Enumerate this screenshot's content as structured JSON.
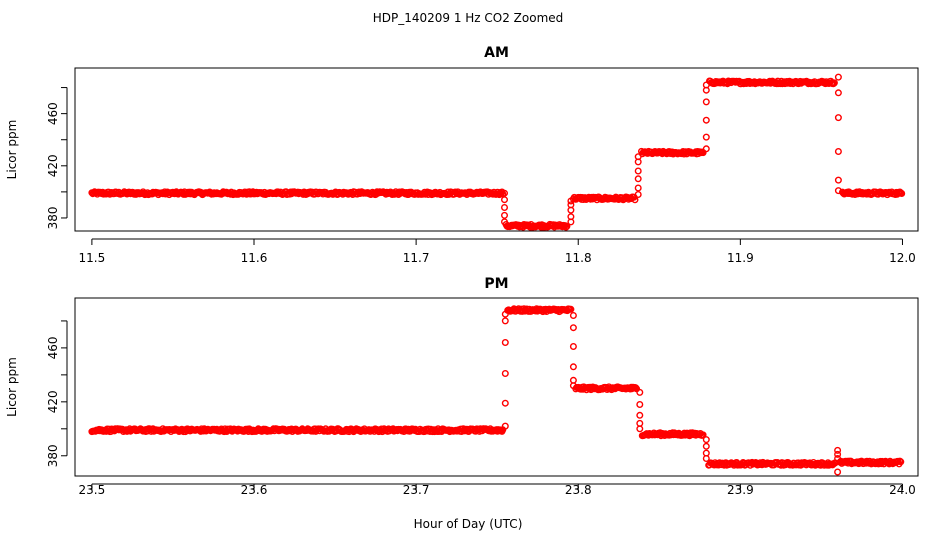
{
  "title": "HDP_140209  1 Hz CO2 Zoomed",
  "xlabel": "Hour of Day (UTC)",
  "colors": {
    "points": "#ff0000",
    "axis": "#000000"
  },
  "chart_data": [
    {
      "type": "scatter",
      "title": "AM",
      "ylabel": "Licor ppm",
      "xlim": [
        11.5,
        12.0
      ],
      "ylim": [
        370,
        495
      ],
      "xticks": [
        "11.5",
        "11.6",
        "11.7",
        "11.8",
        "11.9",
        "12.0"
      ],
      "yticks": [
        "380",
        "420",
        "460"
      ],
      "marker": "open-circle",
      "series": [
        {
          "segments": [
            {
              "x_start": 11.5,
              "x_end": 11.7535,
              "y": 399
            },
            {
              "x_start": 11.7555,
              "x_end": 11.793,
              "y": 374
            },
            {
              "x_start": 11.797,
              "x_end": 11.835,
              "y": 395
            },
            {
              "x_start": 11.839,
              "x_end": 11.877,
              "y": 430
            },
            {
              "x_start": 11.881,
              "x_end": 11.958,
              "y": 484
            },
            {
              "x_start": 11.963,
              "x_end": 11.9995,
              "y": 399
            }
          ],
          "transitions": [
            {
              "x": 11.7545,
              "y": [
                399,
                394,
                388,
                382,
                377
              ]
            },
            {
              "x": 11.7955,
              "y": [
                377,
                381,
                386,
                390,
                393
              ]
            },
            {
              "x": 11.837,
              "y": [
                398,
                403,
                410,
                416,
                423,
                427
              ]
            },
            {
              "x": 11.879,
              "y": [
                433,
                442,
                455,
                469,
                478,
                482
              ]
            },
            {
              "x": 11.9605,
              "y": [
                488,
                476,
                457,
                431,
                409,
                401
              ]
            }
          ]
        }
      ]
    },
    {
      "type": "scatter",
      "title": "PM",
      "ylabel": "Licor ppm",
      "xlim": [
        23.5,
        24.0
      ],
      "ylim": [
        365,
        497
      ],
      "xticks": [
        "23.5",
        "23.6",
        "23.7",
        "23.8",
        "23.9",
        "24.0"
      ],
      "yticks": [
        "380",
        "420",
        "460"
      ],
      "marker": "open-circle",
      "series": [
        {
          "segments": [
            {
              "x_start": 23.5,
              "x_end": 23.7535,
              "y": 399
            },
            {
              "x_start": 23.7565,
              "x_end": 23.7955,
              "y": 488
            },
            {
              "x_start": 23.7985,
              "x_end": 23.836,
              "y": 430
            },
            {
              "x_start": 23.8395,
              "x_end": 23.877,
              "y": 396
            },
            {
              "x_start": 23.8805,
              "x_end": 23.9585,
              "y": 374
            },
            {
              "x_start": 23.9615,
              "x_end": 23.999,
              "y": 375
            }
          ],
          "transitions": [
            {
              "x": 23.755,
              "y": [
                402,
                419,
                441,
                464,
                480,
                485
              ]
            },
            {
              "x": 23.797,
              "y": [
                484,
                475,
                461,
                446,
                436,
                432
              ]
            },
            {
              "x": 23.838,
              "y": [
                427,
                418,
                410,
                404,
                400
              ]
            },
            {
              "x": 23.879,
              "y": [
                392,
                387,
                382,
                378
              ]
            },
            {
              "x": 23.96,
              "y": [
                368,
                384,
                381,
                378
              ]
            }
          ]
        }
      ]
    }
  ]
}
